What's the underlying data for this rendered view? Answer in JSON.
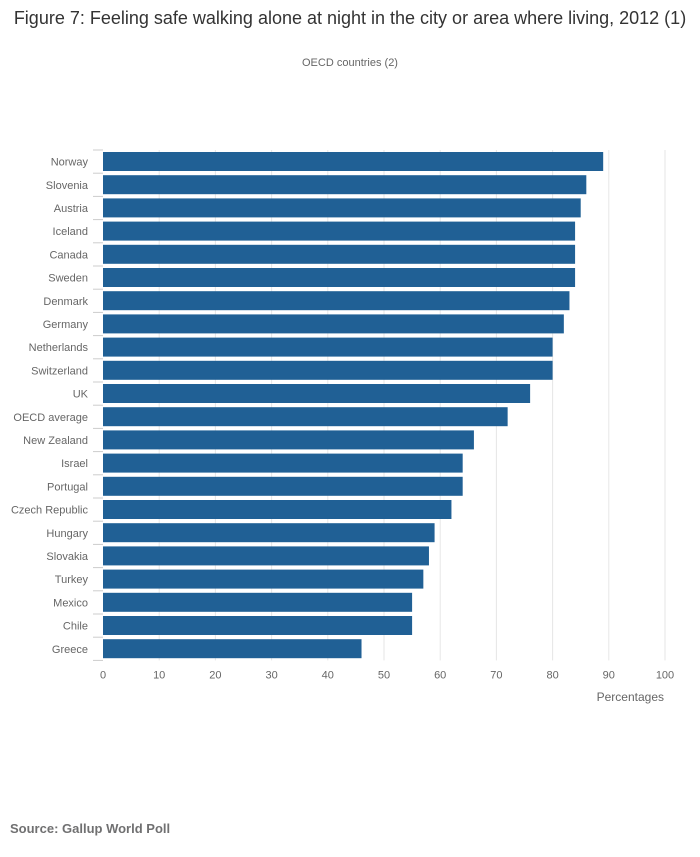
{
  "header": {
    "title": "Figure 7: Feeling safe walking alone at night in the city or area where living, 2012 (1)",
    "subtitle": "OECD countries (2)"
  },
  "footer": {
    "source": "Source: Gallup World Poll"
  },
  "colors": {
    "bar": "#206095",
    "grid": "#e6e6e6",
    "axis_text": "#666666"
  },
  "chart_data": {
    "type": "bar",
    "orientation": "horizontal",
    "categories": [
      "Norway",
      "Slovenia",
      "Austria",
      "Iceland",
      "Canada",
      "Sweden",
      "Denmark",
      "Germany",
      "Netherlands",
      "Switzerland",
      "UK",
      "OECD average",
      "New Zealand",
      "Israel",
      "Portugal",
      "Czech Republic",
      "Hungary",
      "Slovakia",
      "Turkey",
      "Mexico",
      "Chile",
      "Greece"
    ],
    "values": [
      89,
      86,
      85,
      84,
      84,
      84,
      83,
      82,
      80,
      80,
      76,
      72,
      66,
      64,
      64,
      62,
      59,
      58,
      57,
      55,
      55,
      46
    ],
    "xlabel": "Percentages",
    "xlim": [
      0,
      100
    ],
    "xticks": [
      0,
      10,
      20,
      30,
      40,
      50,
      60,
      70,
      80,
      90,
      100
    ],
    "grid": true,
    "legend": "none"
  }
}
